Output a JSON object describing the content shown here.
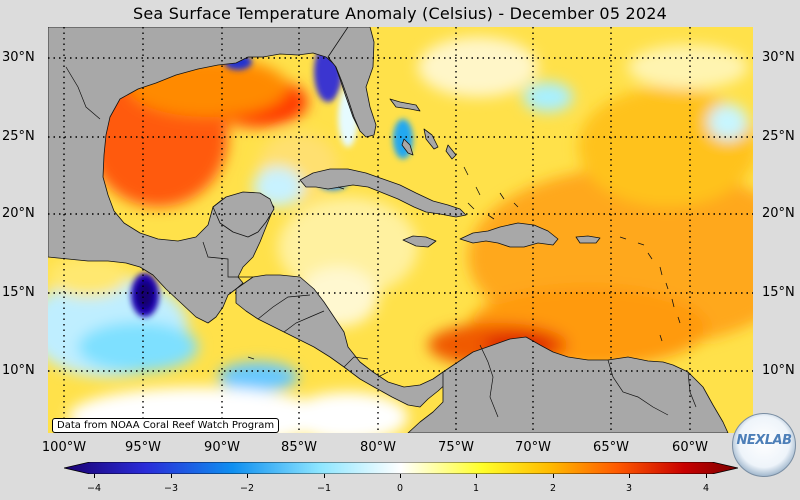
{
  "title": "Sea Surface Temperature Anomaly (Celsius) - December 05 2024",
  "lat_labels": [
    "30°N",
    "25°N",
    "20°N",
    "15°N",
    "10°N"
  ],
  "lon_labels": [
    "100°W",
    "95°W",
    "90°W",
    "85°W",
    "80°W",
    "75°W",
    "70°W",
    "65°W",
    "60°W"
  ],
  "colorbar": {
    "ticks": [
      "−4",
      "−3",
      "−2",
      "−1",
      "0",
      "1",
      "2",
      "3",
      "4"
    ],
    "min": -4,
    "max": 4,
    "colors": [
      "#1a0070",
      "#2a2bd8",
      "#0f8ff0",
      "#8ee6ff",
      "#ffffff",
      "#ffff2a",
      "#ffbb00",
      "#ff5a00",
      "#c80000",
      "#7a0000"
    ]
  },
  "source_note": "Data from NOAA Coral Reef Watch Program",
  "logo": {
    "text": "NEXLAB"
  },
  "colors": {
    "land": "#a8a8a8",
    "background": "#dcdcdc",
    "grid": "#000000"
  }
}
